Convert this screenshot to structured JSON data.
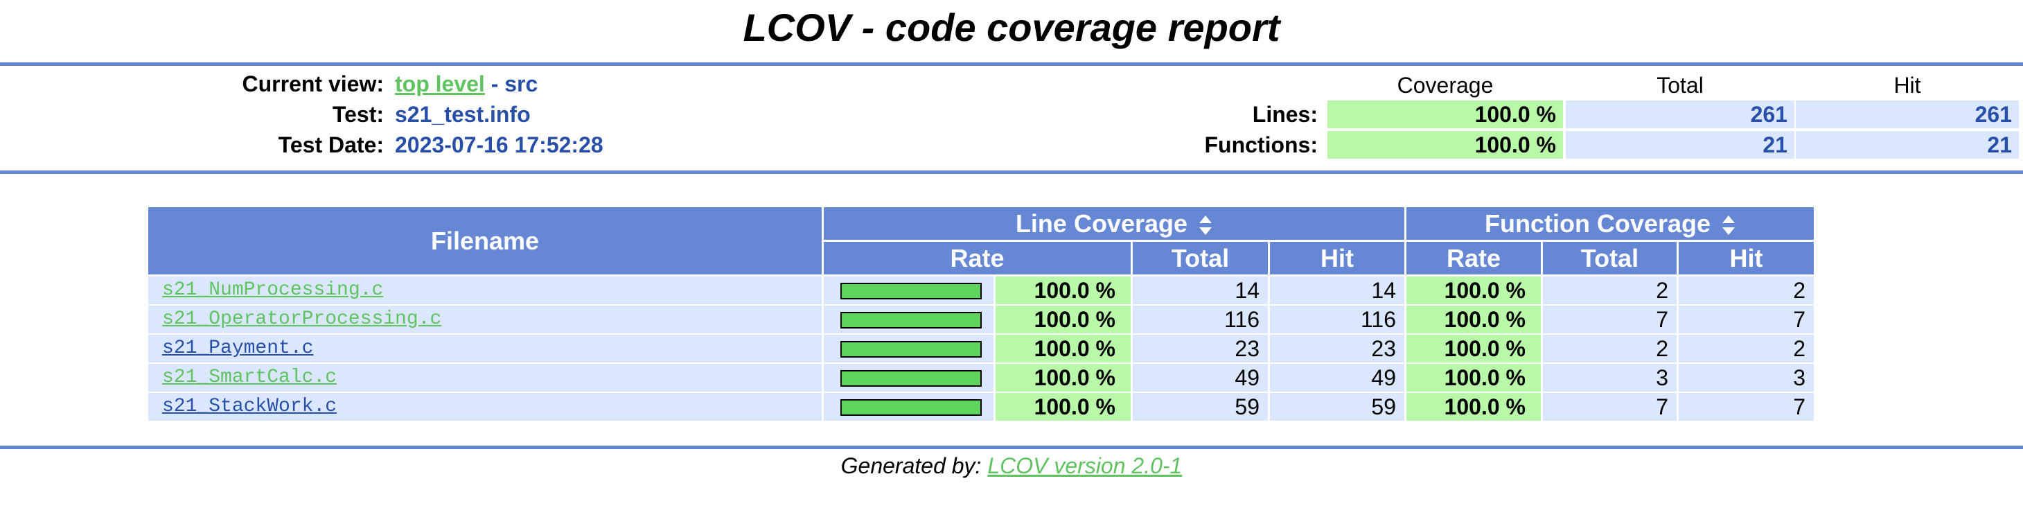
{
  "title": "LCOV - code coverage report",
  "header": {
    "current_view_label": "Current view:",
    "current_view_link": "top level",
    "current_view_sep": " - ",
    "current_view_dir": "src",
    "test_label": "Test:",
    "test_value": "s21_test.info",
    "date_label": "Test Date:",
    "date_value": "2023-07-16 17:52:28"
  },
  "summary": {
    "col_coverage": "Coverage",
    "col_total": "Total",
    "col_hit": "Hit",
    "lines_label": "Lines:",
    "lines_coverage": "100.0 %",
    "lines_total": "261",
    "lines_hit": "261",
    "functions_label": "Functions:",
    "functions_coverage": "100.0 %",
    "functions_total": "21",
    "functions_hit": "21"
  },
  "table": {
    "filename_header": "Filename",
    "line_coverage_header": "Line Coverage",
    "function_coverage_header": "Function Coverage",
    "rate_header": "Rate",
    "total_header": "Total",
    "hit_header": "Hit",
    "rows": [
      {
        "file": "s21_NumProcessing.c",
        "line_pct": 100.0,
        "line_rate": "100.0 %",
        "line_total": "14",
        "line_hit": "14",
        "func_rate": "100.0 %",
        "func_total": "2",
        "func_hit": "2"
      },
      {
        "file": "s21_OperatorProcessing.c",
        "line_pct": 100.0,
        "line_rate": "100.0 %",
        "line_total": "116",
        "line_hit": "116",
        "func_rate": "100.0 %",
        "func_total": "7",
        "func_hit": "7"
      },
      {
        "file": "s21_Payment.c",
        "line_pct": 100.0,
        "line_rate": "100.0 %",
        "line_total": "23",
        "line_hit": "23",
        "func_rate": "100.0 %",
        "func_total": "2",
        "func_hit": "2"
      },
      {
        "file": "s21_SmartCalc.c",
        "line_pct": 100.0,
        "line_rate": "100.0 %",
        "line_total": "49",
        "line_hit": "49",
        "func_rate": "100.0 %",
        "func_total": "3",
        "func_hit": "3"
      },
      {
        "file": "s21_StackWork.c",
        "line_pct": 100.0,
        "line_rate": "100.0 %",
        "line_total": "59",
        "line_hit": "59",
        "func_rate": "100.0 %",
        "func_total": "7",
        "func_hit": "7"
      }
    ]
  },
  "footer": {
    "prefix": "Generated by: ",
    "link": "LCOV version 2.0-1"
  },
  "colors": {
    "rule": "#6688d4",
    "header_bg": "#6688d4",
    "coverage_green": "#b8f8a8",
    "row_blue": "#dae7fe",
    "bar_green": "#5ed35e",
    "link_green": "#5fc35f",
    "value_blue": "#284fa8"
  },
  "icons": {
    "sort": "sort-updown-icon"
  }
}
